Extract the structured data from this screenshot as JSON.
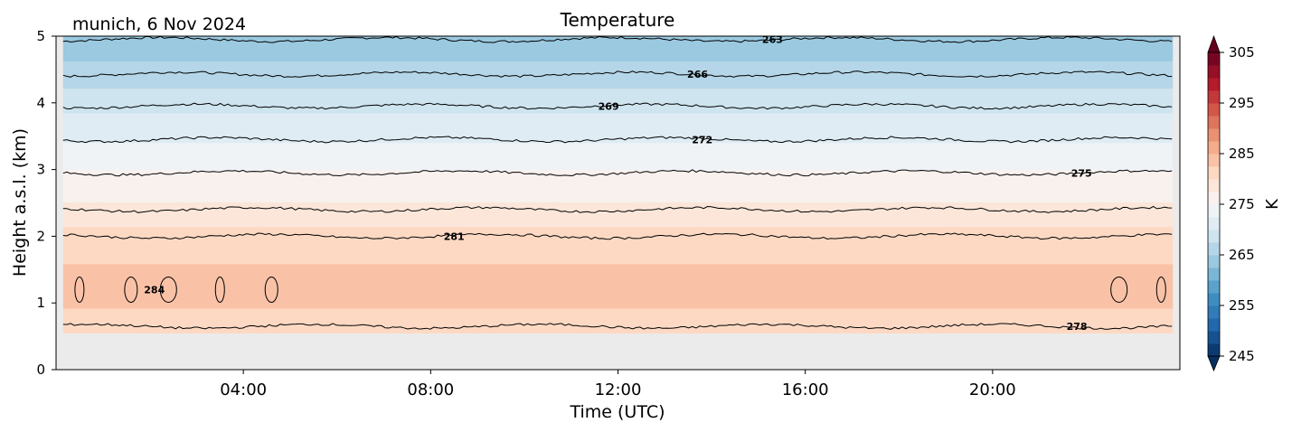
{
  "chart_data": {
    "type": "heatmap",
    "title": "Temperature",
    "subtitle": "munich, 6 Nov 2024",
    "xlabel": "Time (UTC)",
    "ylabel": "Height a.s.l. (km)",
    "xlim": [
      0,
      24
    ],
    "ylim": [
      0,
      5
    ],
    "x_ticks": [
      {
        "value": 4,
        "label": "04:00"
      },
      {
        "value": 8,
        "label": "08:00"
      },
      {
        "value": 12,
        "label": "12:00"
      },
      {
        "value": 16,
        "label": "16:00"
      },
      {
        "value": 20,
        "label": "20:00"
      }
    ],
    "y_ticks": [
      {
        "value": 0,
        "label": "0"
      },
      {
        "value": 1,
        "label": "1"
      },
      {
        "value": 2,
        "label": "2"
      },
      {
        "value": 3,
        "label": "3"
      },
      {
        "value": 4,
        "label": "4"
      },
      {
        "value": 5,
        "label": "5"
      }
    ],
    "colorbar": {
      "label": "K",
      "range": [
        245,
        305
      ],
      "colormap": "RdBu_r",
      "extend": "both",
      "ticks": [
        {
          "value": 245,
          "label": "245"
        },
        {
          "value": 255,
          "label": "255"
        },
        {
          "value": 265,
          "label": "265"
        },
        {
          "value": 275,
          "label": "275"
        },
        {
          "value": 285,
          "label": "285"
        },
        {
          "value": 295,
          "label": "295"
        },
        {
          "value": 305,
          "label": "305"
        }
      ]
    },
    "no_data_below_km": 0.55,
    "temperature_profile": [
      {
        "height_km": 0.55,
        "temp": 280
      },
      {
        "height_km": 0.8,
        "temp": 282
      },
      {
        "height_km": 1.2,
        "temp": 283.5
      },
      {
        "height_km": 1.6,
        "temp": 282.5
      },
      {
        "height_km": 2.0,
        "temp": 281
      },
      {
        "height_km": 2.5,
        "temp": 277.5
      },
      {
        "height_km": 3.0,
        "temp": 275
      },
      {
        "height_km": 3.5,
        "temp": 272
      },
      {
        "height_km": 4.0,
        "temp": 269
      },
      {
        "height_km": 4.45,
        "temp": 266
      },
      {
        "height_km": 4.95,
        "temp": 263
      }
    ],
    "contour_levels": [
      {
        "level": 263,
        "height_km": 4.95,
        "label": "263",
        "label_x": 15.3
      },
      {
        "level": 266,
        "height_km": 4.43,
        "label": "266",
        "label_x": 13.7
      },
      {
        "level": 269,
        "height_km": 3.95,
        "label": "269",
        "label_x": 11.8
      },
      {
        "level": 272,
        "height_km": 3.45,
        "label": "272",
        "label_x": 13.8
      },
      {
        "level": 275,
        "height_km": 2.95,
        "label": "275",
        "label_x": 21.9
      },
      {
        "level": 278,
        "height_km": 2.4,
        "label": "",
        "label_x": null
      },
      {
        "level": 281,
        "height_km": 2.0,
        "label": "281",
        "label_x": 8.5
      },
      {
        "level": 278,
        "height_km": 0.65,
        "label": "278",
        "label_x": 21.8
      },
      {
        "level": 284,
        "height_km": 1.2,
        "label": "284",
        "label_x": 2.1
      }
    ]
  }
}
